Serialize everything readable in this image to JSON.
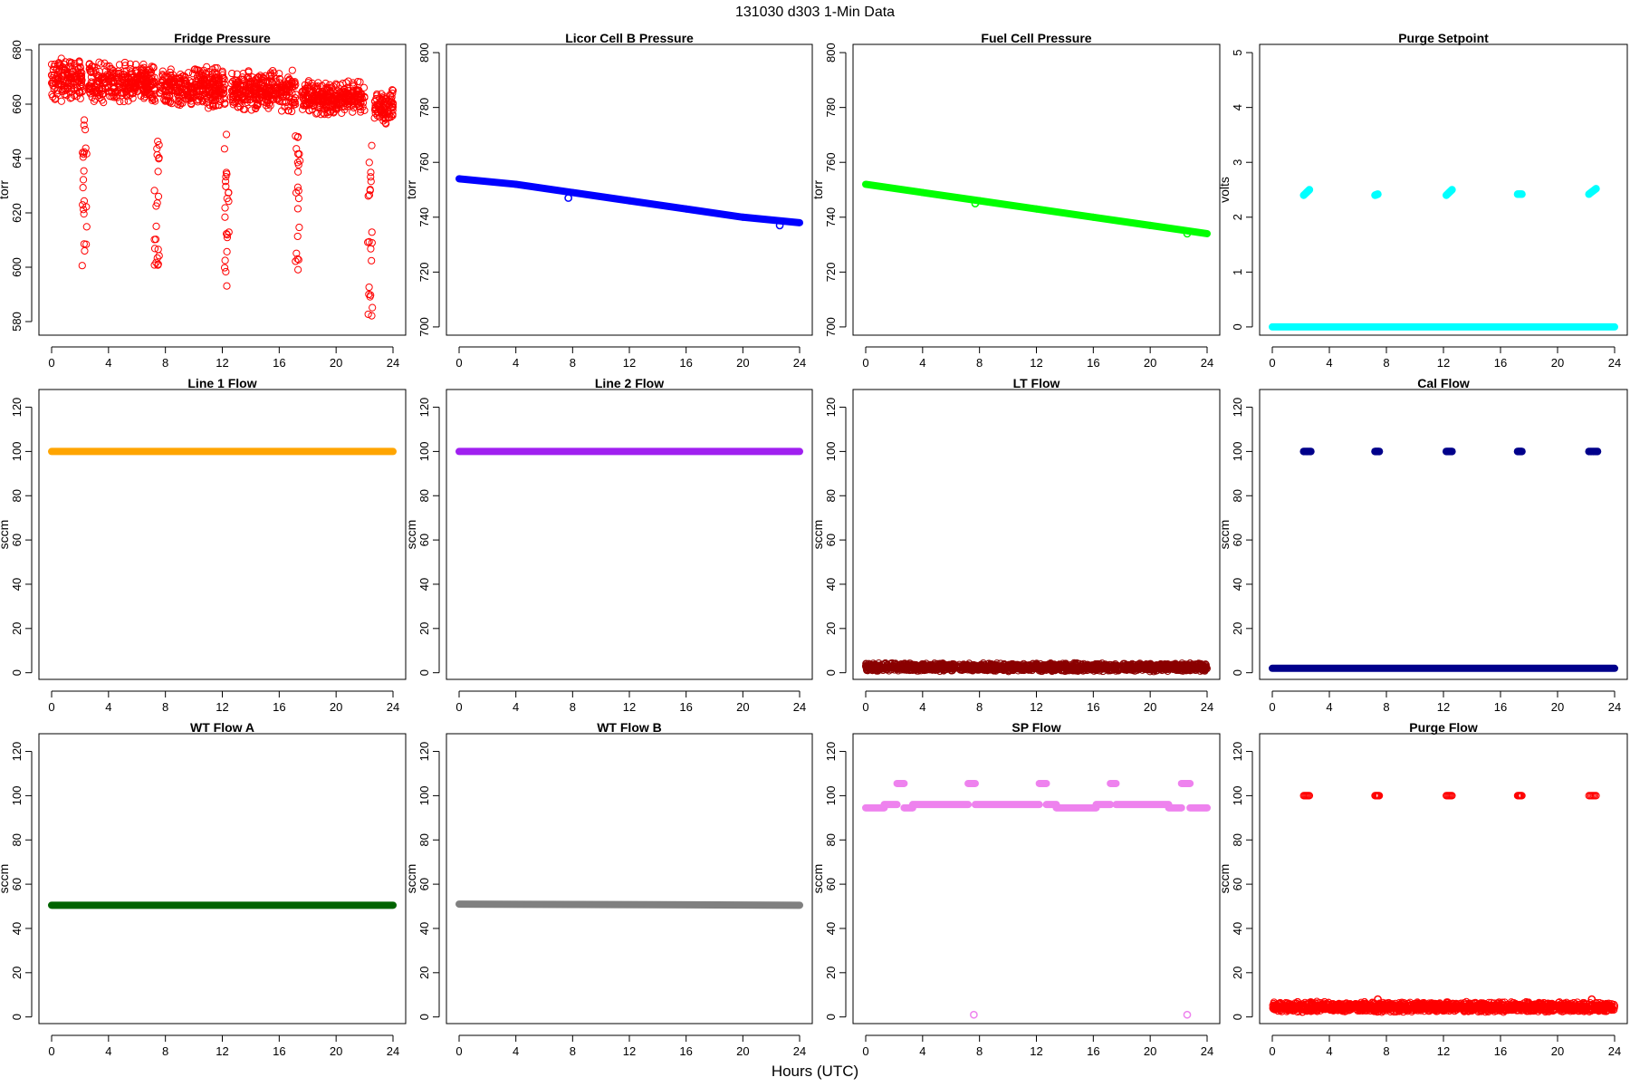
{
  "figure": {
    "title": "131030   d303   1-Min Data",
    "xlabel": "Hours (UTC)"
  },
  "chart_data": [
    {
      "type": "scatter",
      "title": "Fridge Pressure",
      "ylabel": "torr",
      "xlim": [
        0,
        24
      ],
      "ylim": [
        575,
        682
      ],
      "xticks": [
        0,
        4,
        8,
        12,
        16,
        20,
        24
      ],
      "yticks": [
        580,
        600,
        620,
        640,
        660,
        680
      ],
      "color": "#ff0000",
      "marker": "open-circle",
      "series": [
        {
          "segments": [
            {
              "x0": 0.0,
              "x1": 2.2,
              "y": 669,
              "spread": 8
            },
            {
              "x0": 2.6,
              "x1": 7.3,
              "y": 668,
              "spread": 8
            },
            {
              "x0": 7.6,
              "x1": 12.2,
              "y": 666,
              "spread": 8
            },
            {
              "x0": 12.6,
              "x1": 17.2,
              "y": 665,
              "spread": 8
            },
            {
              "x0": 17.6,
              "x1": 22.0,
              "y": 662,
              "spread": 7
            },
            {
              "x0": 22.7,
              "x1": 24.0,
              "y": 659,
              "spread": 7
            }
          ],
          "dips": [
            {
              "x": 2.3,
              "y_min": 600,
              "y_max": 655
            },
            {
              "x": 7.4,
              "y_min": 600,
              "y_max": 652
            },
            {
              "x": 12.3,
              "y_min": 593,
              "y_max": 650
            },
            {
              "x": 17.3,
              "y_min": 597,
              "y_max": 650
            },
            {
              "x": 22.4,
              "y_min": 578,
              "y_max": 650
            }
          ]
        }
      ]
    },
    {
      "type": "scatter",
      "title": "Licor Cell B Pressure",
      "ylabel": "torr",
      "xlim": [
        0,
        24
      ],
      "ylim": [
        697,
        803
      ],
      "xticks": [
        0,
        4,
        8,
        12,
        16,
        20,
        24
      ],
      "yticks": [
        700,
        720,
        740,
        760,
        780,
        800
      ],
      "color": "#0000ff",
      "marker": "filled-line",
      "series": [
        {
          "x": [
            0,
            4,
            8,
            12,
            16,
            20,
            24
          ],
          "y": [
            754,
            752,
            749,
            746,
            743,
            740,
            738
          ],
          "outliers": [
            {
              "x": 7.7,
              "y": 747
            },
            {
              "x": 22.6,
              "y": 737
            }
          ]
        }
      ]
    },
    {
      "type": "scatter",
      "title": "Fuel Cell Pressure",
      "ylabel": "torr",
      "xlim": [
        0,
        24
      ],
      "ylim": [
        697,
        803
      ],
      "xticks": [
        0,
        4,
        8,
        12,
        16,
        20,
        24
      ],
      "yticks": [
        700,
        720,
        740,
        760,
        780,
        800
      ],
      "color": "#00ff00",
      "marker": "filled-line",
      "series": [
        {
          "x": [
            0,
            4,
            8,
            12,
            16,
            20,
            24
          ],
          "y": [
            752,
            749,
            746,
            743,
            740,
            737,
            734
          ],
          "outliers": [
            {
              "x": 7.7,
              "y": 745
            },
            {
              "x": 22.6,
              "y": 734
            }
          ]
        }
      ]
    },
    {
      "type": "scatter",
      "title": "Purge Setpoint",
      "ylabel": "volts",
      "xlim": [
        0,
        24
      ],
      "ylim": [
        -0.15,
        5.15
      ],
      "xticks": [
        0,
        4,
        8,
        12,
        16,
        20,
        24
      ],
      "yticks": [
        0,
        1,
        2,
        3,
        4,
        5
      ],
      "color": "#00ffff",
      "marker": "filled-line",
      "series": [
        {
          "x": [
            0,
            24
          ],
          "y": [
            0,
            0
          ],
          "clusters": [
            {
              "x0": 2.2,
              "x1": 2.6,
              "y0": 2.4,
              "y1": 2.5
            },
            {
              "x0": 7.2,
              "x1": 7.4,
              "y0": 2.4,
              "y1": 2.42
            },
            {
              "x0": 12.2,
              "x1": 12.6,
              "y0": 2.4,
              "y1": 2.5
            },
            {
              "x0": 17.2,
              "x1": 17.5,
              "y0": 2.42,
              "y1": 2.42
            },
            {
              "x0": 22.2,
              "x1": 22.7,
              "y0": 2.42,
              "y1": 2.52
            }
          ]
        }
      ]
    },
    {
      "type": "scatter",
      "title": "Line 1 Flow",
      "ylabel": "sccm",
      "xlim": [
        0,
        24
      ],
      "ylim": [
        -3,
        128
      ],
      "xticks": [
        0,
        4,
        8,
        12,
        16,
        20,
        24
      ],
      "yticks": [
        0,
        20,
        40,
        60,
        80,
        100,
        120
      ],
      "color": "#ffa500",
      "marker": "filled-line",
      "series": [
        {
          "x": [
            0,
            24
          ],
          "y": [
            100,
            100
          ]
        }
      ]
    },
    {
      "type": "scatter",
      "title": "Line 2 Flow",
      "ylabel": "sccm",
      "xlim": [
        0,
        24
      ],
      "ylim": [
        -3,
        128
      ],
      "xticks": [
        0,
        4,
        8,
        12,
        16,
        20,
        24
      ],
      "yticks": [
        0,
        20,
        40,
        60,
        80,
        100,
        120
      ],
      "color": "#a020f0",
      "marker": "filled-line",
      "series": [
        {
          "x": [
            0,
            24
          ],
          "y": [
            100,
            100
          ]
        }
      ]
    },
    {
      "type": "scatter",
      "title": "LT Flow",
      "ylabel": "sccm",
      "xlim": [
        0,
        24
      ],
      "ylim": [
        -3,
        128
      ],
      "xticks": [
        0,
        4,
        8,
        12,
        16,
        20,
        24
      ],
      "yticks": [
        0,
        20,
        40,
        60,
        80,
        100,
        120
      ],
      "color": "#8b0000",
      "marker": "open-circle",
      "series": [
        {
          "segments": [
            {
              "x0": 0,
              "x1": 24,
              "y": 2.5,
              "spread": 2
            }
          ]
        }
      ]
    },
    {
      "type": "scatter",
      "title": "Cal Flow",
      "ylabel": "sccm",
      "xlim": [
        0,
        24
      ],
      "ylim": [
        -3,
        128
      ],
      "xticks": [
        0,
        4,
        8,
        12,
        16,
        20,
        24
      ],
      "yticks": [
        0,
        20,
        40,
        60,
        80,
        100,
        120
      ],
      "color": "#00008b",
      "marker": "filled-line",
      "series": [
        {
          "x": [
            0,
            24
          ],
          "y": [
            2,
            2
          ],
          "clusters": [
            {
              "x0": 2.2,
              "x1": 2.7,
              "y0": 100,
              "y1": 100
            },
            {
              "x0": 7.2,
              "x1": 7.5,
              "y0": 100,
              "y1": 100
            },
            {
              "x0": 12.2,
              "x1": 12.6,
              "y0": 100,
              "y1": 100
            },
            {
              "x0": 17.2,
              "x1": 17.5,
              "y0": 100,
              "y1": 100
            },
            {
              "x0": 22.2,
              "x1": 22.8,
              "y0": 100,
              "y1": 100
            }
          ]
        }
      ]
    },
    {
      "type": "scatter",
      "title": "WT Flow A",
      "ylabel": "sccm",
      "xlim": [
        0,
        24
      ],
      "ylim": [
        -3,
        128
      ],
      "xticks": [
        0,
        4,
        8,
        12,
        16,
        20,
        24
      ],
      "yticks": [
        0,
        20,
        40,
        60,
        80,
        100,
        120
      ],
      "color": "#006400",
      "marker": "filled-line",
      "series": [
        {
          "x": [
            0,
            24
          ],
          "y": [
            50.5,
            50.5
          ]
        }
      ]
    },
    {
      "type": "scatter",
      "title": "WT Flow B",
      "ylabel": "sccm",
      "xlim": [
        0,
        24
      ],
      "ylim": [
        -3,
        128
      ],
      "xticks": [
        0,
        4,
        8,
        12,
        16,
        20,
        24
      ],
      "yticks": [
        0,
        20,
        40,
        60,
        80,
        100,
        120
      ],
      "color": "#808080",
      "marker": "filled-line",
      "series": [
        {
          "x": [
            0,
            24
          ],
          "y": [
            51,
            50.5
          ]
        }
      ]
    },
    {
      "type": "scatter",
      "title": "SP Flow",
      "ylabel": "sccm",
      "xlim": [
        0,
        24
      ],
      "ylim": [
        -3,
        128
      ],
      "xticks": [
        0,
        4,
        8,
        12,
        16,
        20,
        24
      ],
      "yticks": [
        0,
        20,
        40,
        60,
        80,
        100,
        120
      ],
      "color": "#ee82ee",
      "marker": "filled-line",
      "series": [
        {
          "steps": [
            {
              "x0": 0,
              "x1": 1.3,
              "y": 94.5
            },
            {
              "x0": 1.3,
              "x1": 2.2,
              "y": 96
            },
            {
              "x0": 2.2,
              "x1": 2.7,
              "y": 105.5
            },
            {
              "x0": 2.7,
              "x1": 3.3,
              "y": 94.5
            },
            {
              "x0": 3.3,
              "x1": 7.2,
              "y": 96
            },
            {
              "x0": 7.2,
              "x1": 7.7,
              "y": 105.5
            },
            {
              "x0": 7.7,
              "x1": 12.2,
              "y": 96
            },
            {
              "x0": 12.2,
              "x1": 12.7,
              "y": 105.5
            },
            {
              "x0": 12.7,
              "x1": 13.4,
              "y": 96
            },
            {
              "x0": 13.4,
              "x1": 16.2,
              "y": 94.5
            },
            {
              "x0": 16.2,
              "x1": 17.2,
              "y": 96
            },
            {
              "x0": 17.2,
              "x1": 17.6,
              "y": 105.5
            },
            {
              "x0": 17.6,
              "x1": 21.3,
              "y": 96
            },
            {
              "x0": 21.3,
              "x1": 22.2,
              "y": 94.5
            },
            {
              "x0": 22.2,
              "x1": 22.8,
              "y": 105.5
            },
            {
              "x0": 22.8,
              "x1": 24,
              "y": 94.5
            }
          ],
          "outliers": [
            {
              "x": 7.6,
              "y": 1
            },
            {
              "x": 22.6,
              "y": 1
            }
          ]
        }
      ]
    },
    {
      "type": "scatter",
      "title": "Purge Flow",
      "ylabel": "sccm",
      "xlim": [
        0,
        24
      ],
      "ylim": [
        -3,
        128
      ],
      "xticks": [
        0,
        4,
        8,
        12,
        16,
        20,
        24
      ],
      "yticks": [
        0,
        20,
        40,
        60,
        80,
        100,
        120
      ],
      "color": "#ff0000",
      "marker": "open-circle",
      "series": [
        {
          "segments": [
            {
              "x0": 0,
              "x1": 24,
              "y": 4.5,
              "spread": 2.5
            }
          ],
          "clusters": [
            {
              "x0": 2.2,
              "x1": 2.6,
              "y0": 100,
              "y1": 100
            },
            {
              "x0": 7.2,
              "x1": 7.5,
              "y0": 100,
              "y1": 100
            },
            {
              "x0": 12.2,
              "x1": 12.6,
              "y0": 100,
              "y1": 100
            },
            {
              "x0": 17.2,
              "x1": 17.5,
              "y0": 100,
              "y1": 100
            },
            {
              "x0": 22.2,
              "x1": 22.7,
              "y0": 100,
              "y1": 100
            }
          ],
          "outliers": [
            {
              "x": 7.4,
              "y": 8
            },
            {
              "x": 22.4,
              "y": 8
            }
          ]
        }
      ]
    }
  ]
}
